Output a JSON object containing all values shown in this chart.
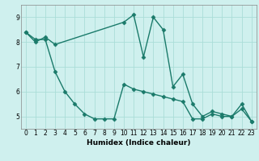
{
  "xlabel": "Humidex (Indice chaleur)",
  "bg_color": "#cff0ee",
  "grid_color": "#aaddd8",
  "line_color": "#1a7a6a",
  "xlim": [
    -0.5,
    23.5
  ],
  "ylim": [
    4.5,
    9.5
  ],
  "yticks": [
    5,
    6,
    7,
    8,
    9
  ],
  "xticks": [
    0,
    1,
    2,
    3,
    4,
    5,
    6,
    7,
    8,
    9,
    10,
    11,
    12,
    13,
    14,
    15,
    16,
    17,
    18,
    19,
    20,
    21,
    22,
    23
  ],
  "series1_x": [
    0,
    1,
    2,
    3,
    10,
    11,
    12,
    13,
    14,
    15,
    16,
    17,
    18,
    19,
    20,
    21,
    22,
    23
  ],
  "series1_y": [
    8.4,
    8.0,
    8.2,
    7.9,
    8.8,
    9.1,
    7.4,
    9.0,
    8.5,
    6.2,
    6.7,
    5.5,
    5.0,
    5.2,
    5.1,
    5.0,
    5.3,
    4.8
  ],
  "series2_x": [
    0,
    1,
    2,
    3,
    4,
    5,
    6,
    7,
    8,
    9,
    10,
    11,
    12,
    13,
    14,
    15,
    16,
    17,
    18,
    19,
    20,
    21,
    22,
    23
  ],
  "series2_y": [
    8.4,
    8.1,
    8.1,
    6.8,
    6.0,
    5.5,
    5.1,
    4.9,
    4.9,
    4.9,
    6.3,
    6.1,
    6.0,
    5.9,
    5.8,
    5.7,
    5.6,
    4.9,
    4.9,
    5.1,
    5.0,
    5.0,
    5.5,
    4.8
  ]
}
